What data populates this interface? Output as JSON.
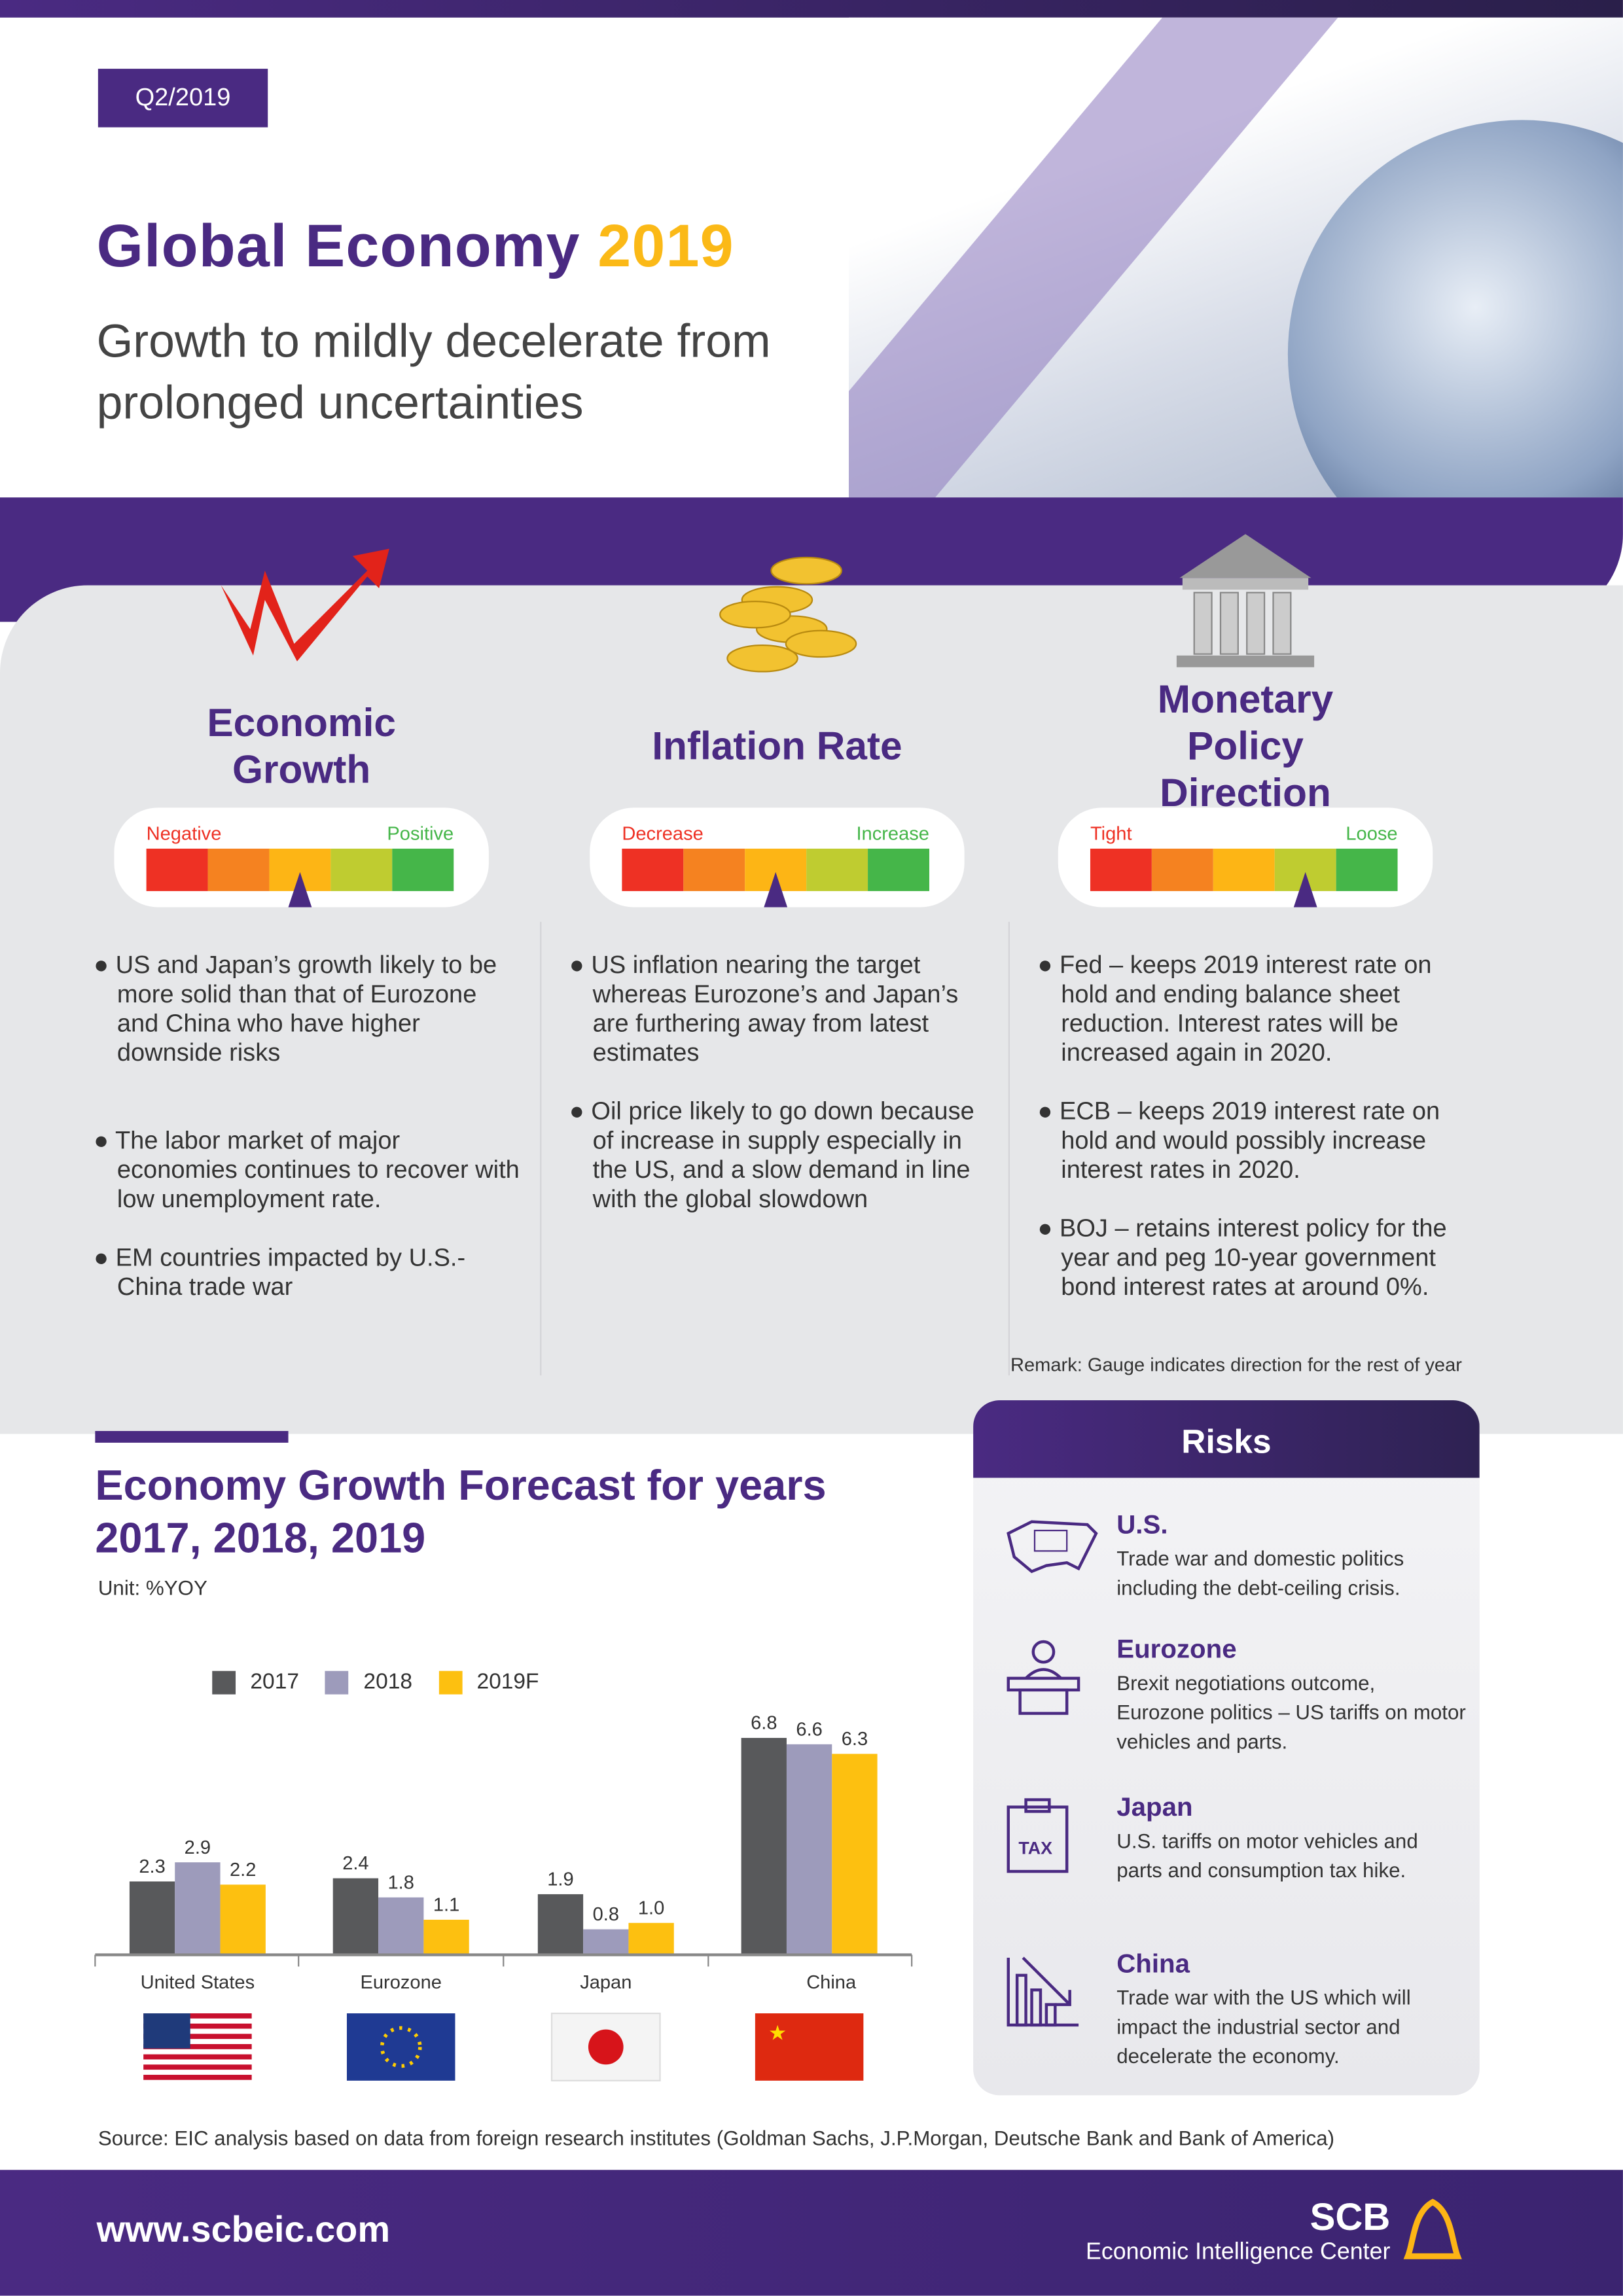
{
  "header": {
    "badge": "Q2/2019",
    "title": "Global Economy",
    "title_year": "2019",
    "subtitle": "Growth to mildly decelerate from prolonged uncertainties"
  },
  "indicators": [
    {
      "title": "Economic Growth",
      "icon": "rising-arrow-icon",
      "left_label": "Negative",
      "right_label": "Positive",
      "pointer_fraction": 0.5,
      "bullets": [
        "US and Japan’s growth likely to be more solid than that of Eurozone and China who have higher downside risks",
        "The labor market of major economies continues to recover with low unemployment rate.",
        "EM countries impacted by U.S.-China trade war"
      ]
    },
    {
      "title": "Inflation Rate",
      "icon": "coins-icon",
      "left_label": "Decrease",
      "right_label": "Increase",
      "pointer_fraction": 0.5,
      "bullets": [
        "US inflation nearing the target whereas Eurozone’s and Japan’s are furthering away from latest estimates",
        "Oil price likely to go down because of increase in supply especially in the US, and a slow demand in line with the global slowdown"
      ]
    },
    {
      "title": "Monetary Policy Direction",
      "icon": "bank-icon",
      "left_label": "Tight",
      "right_label": "Loose",
      "pointer_fraction": 0.7,
      "bullets": [
        "Fed – keeps 2019 interest rate on hold and ending balance sheet reduction. Interest rates will be increased again in 2020.",
        "ECB – keeps 2019 interest rate on hold and would possibly increase interest rates in 2020.",
        "BOJ – retains interest policy for the year and peg 10-year government bond interest rates at around 0%."
      ]
    }
  ],
  "gauge_colors": [
    "#ee3124",
    "#f58220",
    "#fdb515",
    "#bfcc30",
    "#45b649"
  ],
  "remark": "Remark: Gauge indicates direction for the rest of year",
  "chart_data": {
    "type": "bar",
    "title": "Economy Growth Forecast for years 2017, 2018, 2019",
    "unit": "Unit: %YOY",
    "categories": [
      "United States",
      "Eurozone",
      "Japan",
      "China"
    ],
    "series": [
      {
        "name": "2017",
        "color": "#58595b",
        "values": [
          2.3,
          2.4,
          1.9,
          6.8
        ]
      },
      {
        "name": "2018",
        "color": "#9d9bbb",
        "values": [
          2.9,
          1.8,
          0.8,
          6.6
        ]
      },
      {
        "name": "2019F",
        "color": "#fdc010",
        "values": [
          2.2,
          1.1,
          1.0,
          6.3
        ]
      }
    ],
    "value_labels": [
      [
        "2.3",
        "2.4",
        "1.9",
        "6.8"
      ],
      [
        "2.9",
        "1.8",
        "0.8",
        "6.6"
      ],
      [
        "2.2",
        "1.1",
        "1.0",
        "6.3"
      ]
    ],
    "ylim": [
      0,
      7
    ],
    "legend": "top",
    "grid": false
  },
  "risks": {
    "title": "Risks",
    "items": [
      {
        "name": "U.S.",
        "icon": "us-map-icon",
        "text": "Trade war and domestic politics including the debt-ceiling crisis."
      },
      {
        "name": "Eurozone",
        "icon": "podium-speaker-icon",
        "text": "Brexit negotiations outcome, Eurozone politics – US tariffs on motor vehicles and parts."
      },
      {
        "name": "Japan",
        "icon": "tax-clipboard-icon",
        "text": "U.S. tariffs on motor vehicles and parts and consumption tax hike."
      },
      {
        "name": "China",
        "icon": "declining-chart-icon",
        "text": "Trade war with the US which will impact the industrial sector and decelerate the economy."
      }
    ]
  },
  "source": "Source: EIC analysis based on data from foreign research institutes (Goldman Sachs, J.P.Morgan, Deutsche Bank and Bank of America)",
  "footer": {
    "url": "www.scbeic.com",
    "brand": "SCB",
    "brand_sub": "Economic Intelligence Center"
  }
}
